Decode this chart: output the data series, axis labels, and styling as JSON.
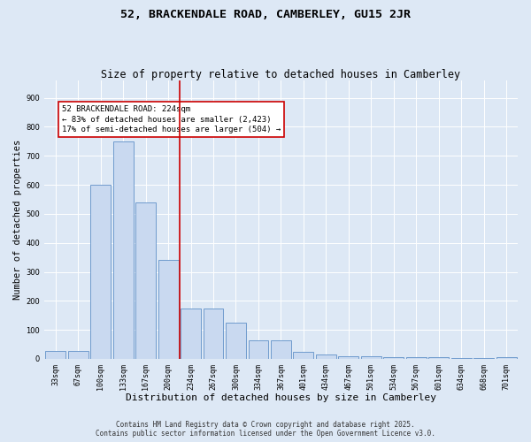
{
  "title": "52, BRACKENDALE ROAD, CAMBERLEY, GU15 2JR",
  "subtitle": "Size of property relative to detached houses in Camberley",
  "xlabel": "Distribution of detached houses by size in Camberley",
  "ylabel": "Number of detached properties",
  "categories": [
    "33sqm",
    "67sqm",
    "100sqm",
    "133sqm",
    "167sqm",
    "200sqm",
    "234sqm",
    "267sqm",
    "300sqm",
    "334sqm",
    "367sqm",
    "401sqm",
    "434sqm",
    "467sqm",
    "501sqm",
    "534sqm",
    "567sqm",
    "601sqm",
    "634sqm",
    "668sqm",
    "701sqm"
  ],
  "bar_values": [
    27,
    27,
    600,
    750,
    540,
    340,
    175,
    175,
    125,
    65,
    65,
    25,
    15,
    10,
    10,
    5,
    5,
    5,
    2,
    2,
    5
  ],
  "bar_color": "#c9d9f0",
  "bar_edge_color": "#6090c8",
  "vline_x_index": 6,
  "annotation_text_line1": "52 BRACKENDALE ROAD: 224sqm",
  "annotation_text_line2": "← 83% of detached houses are smaller (2,423)",
  "annotation_text_line3": "17% of semi-detached houses are larger (504) →",
  "annotation_box_color": "#ffffff",
  "annotation_box_edge_color": "#cc0000",
  "vline_color": "#cc0000",
  "ylim": [
    0,
    960
  ],
  "yticks": [
    0,
    100,
    200,
    300,
    400,
    500,
    600,
    700,
    800,
    900
  ],
  "background_color": "#dde8f5",
  "footer_line1": "Contains HM Land Registry data © Crown copyright and database right 2025.",
  "footer_line2": "Contains public sector information licensed under the Open Government Licence v3.0.",
  "title_fontsize": 9.5,
  "subtitle_fontsize": 8.5,
  "xlabel_fontsize": 8,
  "ylabel_fontsize": 7.5,
  "tick_fontsize": 6,
  "annotation_fontsize": 6.5,
  "footer_fontsize": 5.5,
  "grid_color": "#ffffff"
}
